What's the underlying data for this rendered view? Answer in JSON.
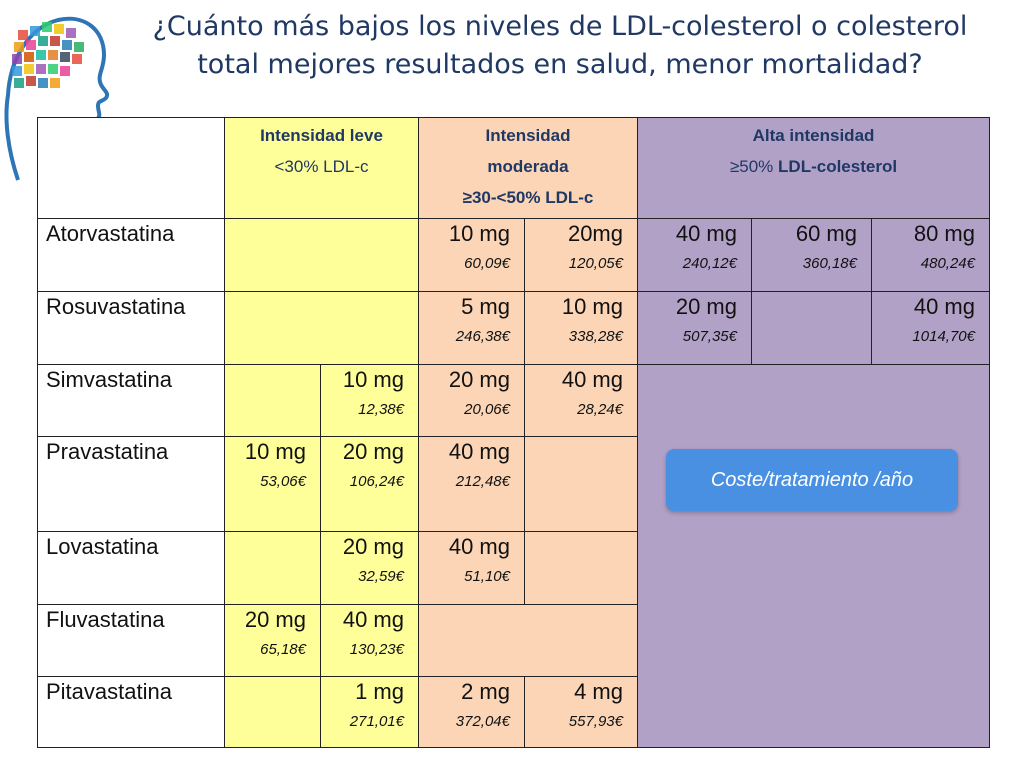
{
  "title": {
    "line1": "¿Cuánto más bajos los niveles de LDL-colesterol o colesterol",
    "line2": "total mejores resultados en salud, menor mortalidad?"
  },
  "colors": {
    "yellow": "#ffff99",
    "orange": "#fbd5b5",
    "purple": "#b2a1c7",
    "badge": "#4a90e2",
    "title": "#1f3864"
  },
  "headers": {
    "leve": {
      "line1": "Intensidad leve",
      "line2": "<30%  LDL-c"
    },
    "moderada": {
      "line1": "Intensidad",
      "line2": "moderada",
      "line3": "≥30-<50% LDL-c"
    },
    "alta": {
      "line1": "Alta intensidad",
      "line2a": "≥50%",
      "line2b": "LDL-colesterol"
    }
  },
  "rows": {
    "atorvastatina": {
      "name": "Atorvastatina",
      "c3": {
        "dose": "10 mg",
        "price": "60,09€"
      },
      "c4": {
        "dose": "20mg",
        "price": "120,05€"
      },
      "c5": {
        "dose": "40 mg",
        "price": "240,12€"
      },
      "c6": {
        "dose": "60 mg",
        "price": "360,18€"
      },
      "c7": {
        "dose": "80 mg",
        "price": "480,24€"
      }
    },
    "rosuvastatina": {
      "name": "Rosuvastatina",
      "c3": {
        "dose": "5 mg",
        "price": "246,38€"
      },
      "c4": {
        "dose": "10 mg",
        "price": "338,28€"
      },
      "c5": {
        "dose": "20 mg",
        "price": "507,35€"
      },
      "c7": {
        "dose": "40 mg",
        "price": "1014,70€"
      }
    },
    "simvastatina": {
      "name": "Simvastatina",
      "c2": {
        "dose": "10 mg",
        "price": "12,38€"
      },
      "c3": {
        "dose": "20 mg",
        "price": "20,06€"
      },
      "c4": {
        "dose": "40 mg",
        "price": "28,24€"
      }
    },
    "pravastatina": {
      "name": "Pravastatina",
      "c1": {
        "dose": "10 mg",
        "price": "53,06€"
      },
      "c2": {
        "dose": "20 mg",
        "price": "106,24€"
      },
      "c3": {
        "dose": "40 mg",
        "price": "212,48€"
      }
    },
    "lovastatina": {
      "name": "Lovastatina",
      "c2": {
        "dose": "20 mg",
        "price": "32,59€"
      },
      "c3": {
        "dose": "40 mg",
        "price": "51,10€"
      }
    },
    "fluvastatina": {
      "name": "Fluvastatina",
      "c1": {
        "dose": "20 mg",
        "price": "65,18€"
      },
      "c2": {
        "dose": "40 mg",
        "price": "130,23€"
      }
    },
    "pitavastatina": {
      "name": "Pitavastatina",
      "c2": {
        "dose": "1 mg",
        "price": "271,01€"
      },
      "c3": {
        "dose": "2 mg",
        "price": "372,04€"
      },
      "c4": {
        "dose": "4 mg",
        "price": "557,93€"
      }
    }
  },
  "badge": "Coste/tratamiento /año",
  "logo_icon": "head-profile-icon"
}
